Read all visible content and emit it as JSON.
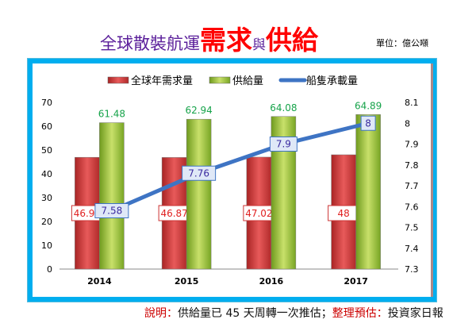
{
  "title": {
    "part1": "全球散裝航運",
    "part2": "需求",
    "part3": "與",
    "part4": "供給"
  },
  "unit": "單位：億公噸",
  "footer": {
    "label1": "說明：",
    "text1": "供給量已 45 天周轉一次推估；",
    "label2": "整理預估：",
    "text2": "投資家日報"
  },
  "chart_data": {
    "type": "bar+line",
    "categories": [
      "2014",
      "2015",
      "2016",
      "2017"
    ],
    "series": [
      {
        "name": "全球年需求量",
        "type": "bar",
        "axis": "left",
        "color": "#d63b3b",
        "values": [
          46.94,
          46.87,
          47.02,
          48
        ]
      },
      {
        "name": "供給量",
        "type": "bar",
        "axis": "left",
        "color": "#9bc23c",
        "values": [
          61.48,
          62.94,
          64.08,
          64.89
        ]
      },
      {
        "name": "船隻承載量",
        "type": "line",
        "axis": "right",
        "color": "#3e74c4",
        "values": [
          7.58,
          7.76,
          7.9,
          8
        ]
      }
    ],
    "ylim": [
      0,
      70
    ],
    "yticks": [
      0,
      10,
      20,
      30,
      40,
      50,
      60,
      70
    ],
    "y2lim": [
      7.3,
      8.1
    ],
    "y2ticks": [
      "7.3",
      "7.4",
      "7.5",
      "7.6",
      "7.7",
      "7.8",
      "7.9",
      "8",
      "8.1"
    ],
    "legend": "top",
    "grid": false
  }
}
